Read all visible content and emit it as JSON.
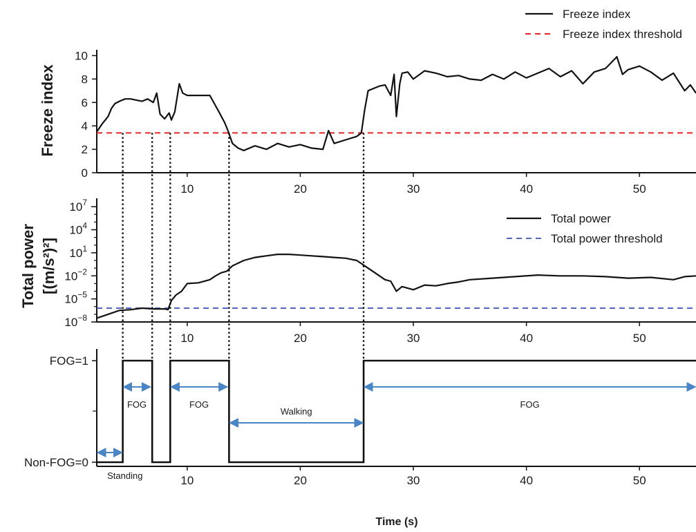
{
  "chart_data": [
    {
      "type": "line",
      "ylabel": "Freeze index",
      "xlim": [
        2,
        55
      ],
      "ylim": [
        0,
        10.5
      ],
      "yticks": [
        "0",
        "2",
        "4",
        "6",
        "8",
        "10"
      ],
      "xticks": [
        "10",
        "20",
        "30",
        "40",
        "50"
      ],
      "legend": [
        "Freeze index",
        "Freeze index threshold"
      ],
      "threshold": {
        "name": "Freeze index threshold",
        "value": 3.4,
        "color": "#e32626"
      },
      "series": [
        {
          "name": "Freeze index",
          "x": [
            2.0,
            2.5,
            3.0,
            3.3,
            3.6,
            4.0,
            4.5,
            5.0,
            5.5,
            6.0,
            6.5,
            7.0,
            7.3,
            7.6,
            8.0,
            8.4,
            8.6,
            8.9,
            9.3,
            9.6,
            10.0,
            11.0,
            12.0,
            12.8,
            13.3,
            13.6,
            14.0,
            14.5,
            15.0,
            16.0,
            17.0,
            18.0,
            19.0,
            20.0,
            21.0,
            22.0,
            22.5,
            23.0,
            24.0,
            25.0,
            25.4,
            25.7,
            26.0,
            26.5,
            27.0,
            27.5,
            28.0,
            28.3,
            28.5,
            28.8,
            29.0,
            29.5,
            30.0,
            31.0,
            32.0,
            33.0,
            34.0,
            35.0,
            36.0,
            37.0,
            38.0,
            39.0,
            40.0,
            41.0,
            42.0,
            43.0,
            44.0,
            45.0,
            46.0,
            47.0,
            48.0,
            48.5,
            49.0,
            50.0,
            51.0,
            52.0,
            53.0,
            54.0,
            54.5,
            55.0
          ],
          "y": [
            3.5,
            4.2,
            4.8,
            5.5,
            5.9,
            6.1,
            6.3,
            6.3,
            6.2,
            6.1,
            6.3,
            6.0,
            6.8,
            5.0,
            4.6,
            5.1,
            4.5,
            5.2,
            7.6,
            6.8,
            6.6,
            6.6,
            6.6,
            5.2,
            4.3,
            3.6,
            2.5,
            2.1,
            1.9,
            2.3,
            2.0,
            2.5,
            2.2,
            2.4,
            2.1,
            2.0,
            3.6,
            2.5,
            2.8,
            3.1,
            3.4,
            5.4,
            7.0,
            7.2,
            7.4,
            7.5,
            6.6,
            8.4,
            4.8,
            7.6,
            8.5,
            8.6,
            8.0,
            8.7,
            8.5,
            8.2,
            8.3,
            8.0,
            7.9,
            8.4,
            8.0,
            8.6,
            8.1,
            8.5,
            8.9,
            8.2,
            8.7,
            7.6,
            8.6,
            8.9,
            9.9,
            8.4,
            8.8,
            9.1,
            8.6,
            7.9,
            8.5,
            7.0,
            7.5,
            6.8
          ],
          "color": "#111111"
        }
      ]
    },
    {
      "type": "line",
      "ylabel": "Total power",
      "ylabel2": "[(m/s²)²]",
      "yscale": "log",
      "ylim": [
        -8,
        8
      ],
      "yticks": [
        {
          "mant": "10",
          "exp": "7"
        },
        {
          "mant": "10",
          "exp": "4"
        },
        {
          "mant": "10",
          "exp": "1"
        },
        {
          "mant": "10",
          "exp": "−2"
        },
        {
          "mant": "10",
          "exp": "−5"
        },
        {
          "mant": "10",
          "exp": "−8"
        }
      ],
      "xticks": [
        "10",
        "20",
        "30",
        "40",
        "50"
      ],
      "legend": [
        "Total power",
        "Total power threshold"
      ],
      "threshold": {
        "name": "Total power threshold",
        "log10_value": -6.2,
        "color": "#3a50b0"
      },
      "series": [
        {
          "name": "Total power",
          "log10_x": [
            2.0,
            3.0,
            4.0,
            5.0,
            6.0,
            7.0,
            8.0,
            8.3,
            8.6,
            9.0,
            9.5,
            10.0,
            11.0,
            12.0,
            12.5,
            13.0,
            13.5,
            14.0,
            15.0,
            16.0,
            17.0,
            18.0,
            19.0,
            20.0,
            21.0,
            22.0,
            23.0,
            24.0,
            25.0,
            25.7,
            26.5,
            27.5,
            28.0,
            28.5,
            29.0,
            30.0,
            31.0,
            32.0,
            33.0,
            34.0,
            35.0,
            37.0,
            39.0,
            41.0,
            43.0,
            45.0,
            47.0,
            49.0,
            51.0,
            53.0,
            54.0,
            55.0
          ],
          "log10_y": [
            -7.5,
            -7.0,
            -6.5,
            -6.4,
            -6.2,
            -6.3,
            -6.3,
            -6.4,
            -5.2,
            -4.5,
            -4.0,
            -3.0,
            -2.9,
            -2.5,
            -2.0,
            -1.6,
            -1.4,
            -0.7,
            0.0,
            0.4,
            0.6,
            0.8,
            0.8,
            0.7,
            0.6,
            0.5,
            0.4,
            0.3,
            0.0,
            -0.7,
            -1.5,
            -2.5,
            -2.7,
            -4.0,
            -3.4,
            -3.8,
            -3.2,
            -3.3,
            -3.0,
            -2.8,
            -2.5,
            -2.3,
            -2.1,
            -1.9,
            -2.0,
            -2.0,
            -2.1,
            -2.3,
            -2.2,
            -2.5,
            -2.1,
            -2.0
          ],
          "color": "#111111"
        }
      ]
    },
    {
      "type": "line",
      "xlabel": "Time (s)",
      "xlim": [
        2,
        55
      ],
      "yticks": [
        "FOG=1",
        "Non-FOG=0"
      ],
      "xticks": [
        "10",
        "20",
        "30",
        "40",
        "50"
      ],
      "series": [
        {
          "name": "FOG state",
          "x": [
            2.0,
            4.3,
            4.3,
            6.9,
            6.9,
            7.3,
            7.3,
            8.5,
            8.5,
            13.7,
            13.7,
            25.6,
            25.6,
            55.0
          ],
          "y": [
            0,
            0,
            1,
            1,
            0,
            0,
            0,
            0,
            1,
            1,
            0,
            0,
            1,
            1
          ],
          "color": "#111111"
        }
      ],
      "annotations": [
        {
          "label": "Standing",
          "x0": 2.0,
          "x1": 4.3,
          "row": "low"
        },
        {
          "label": "FOG",
          "x0": 4.3,
          "x1": 6.8,
          "row": "high"
        },
        {
          "label": "FOG",
          "x0": 8.5,
          "x1": 13.6,
          "row": "high"
        },
        {
          "label": "Walking",
          "x0": 13.7,
          "x1": 25.6,
          "row": "mid"
        },
        {
          "label": "FOG",
          "x0": 25.6,
          "x1": 55.0,
          "row": "high"
        }
      ],
      "annotation_color": "#4a86c6"
    }
  ],
  "event_times": [
    4.3,
    6.9,
    8.5,
    13.7,
    25.6
  ]
}
